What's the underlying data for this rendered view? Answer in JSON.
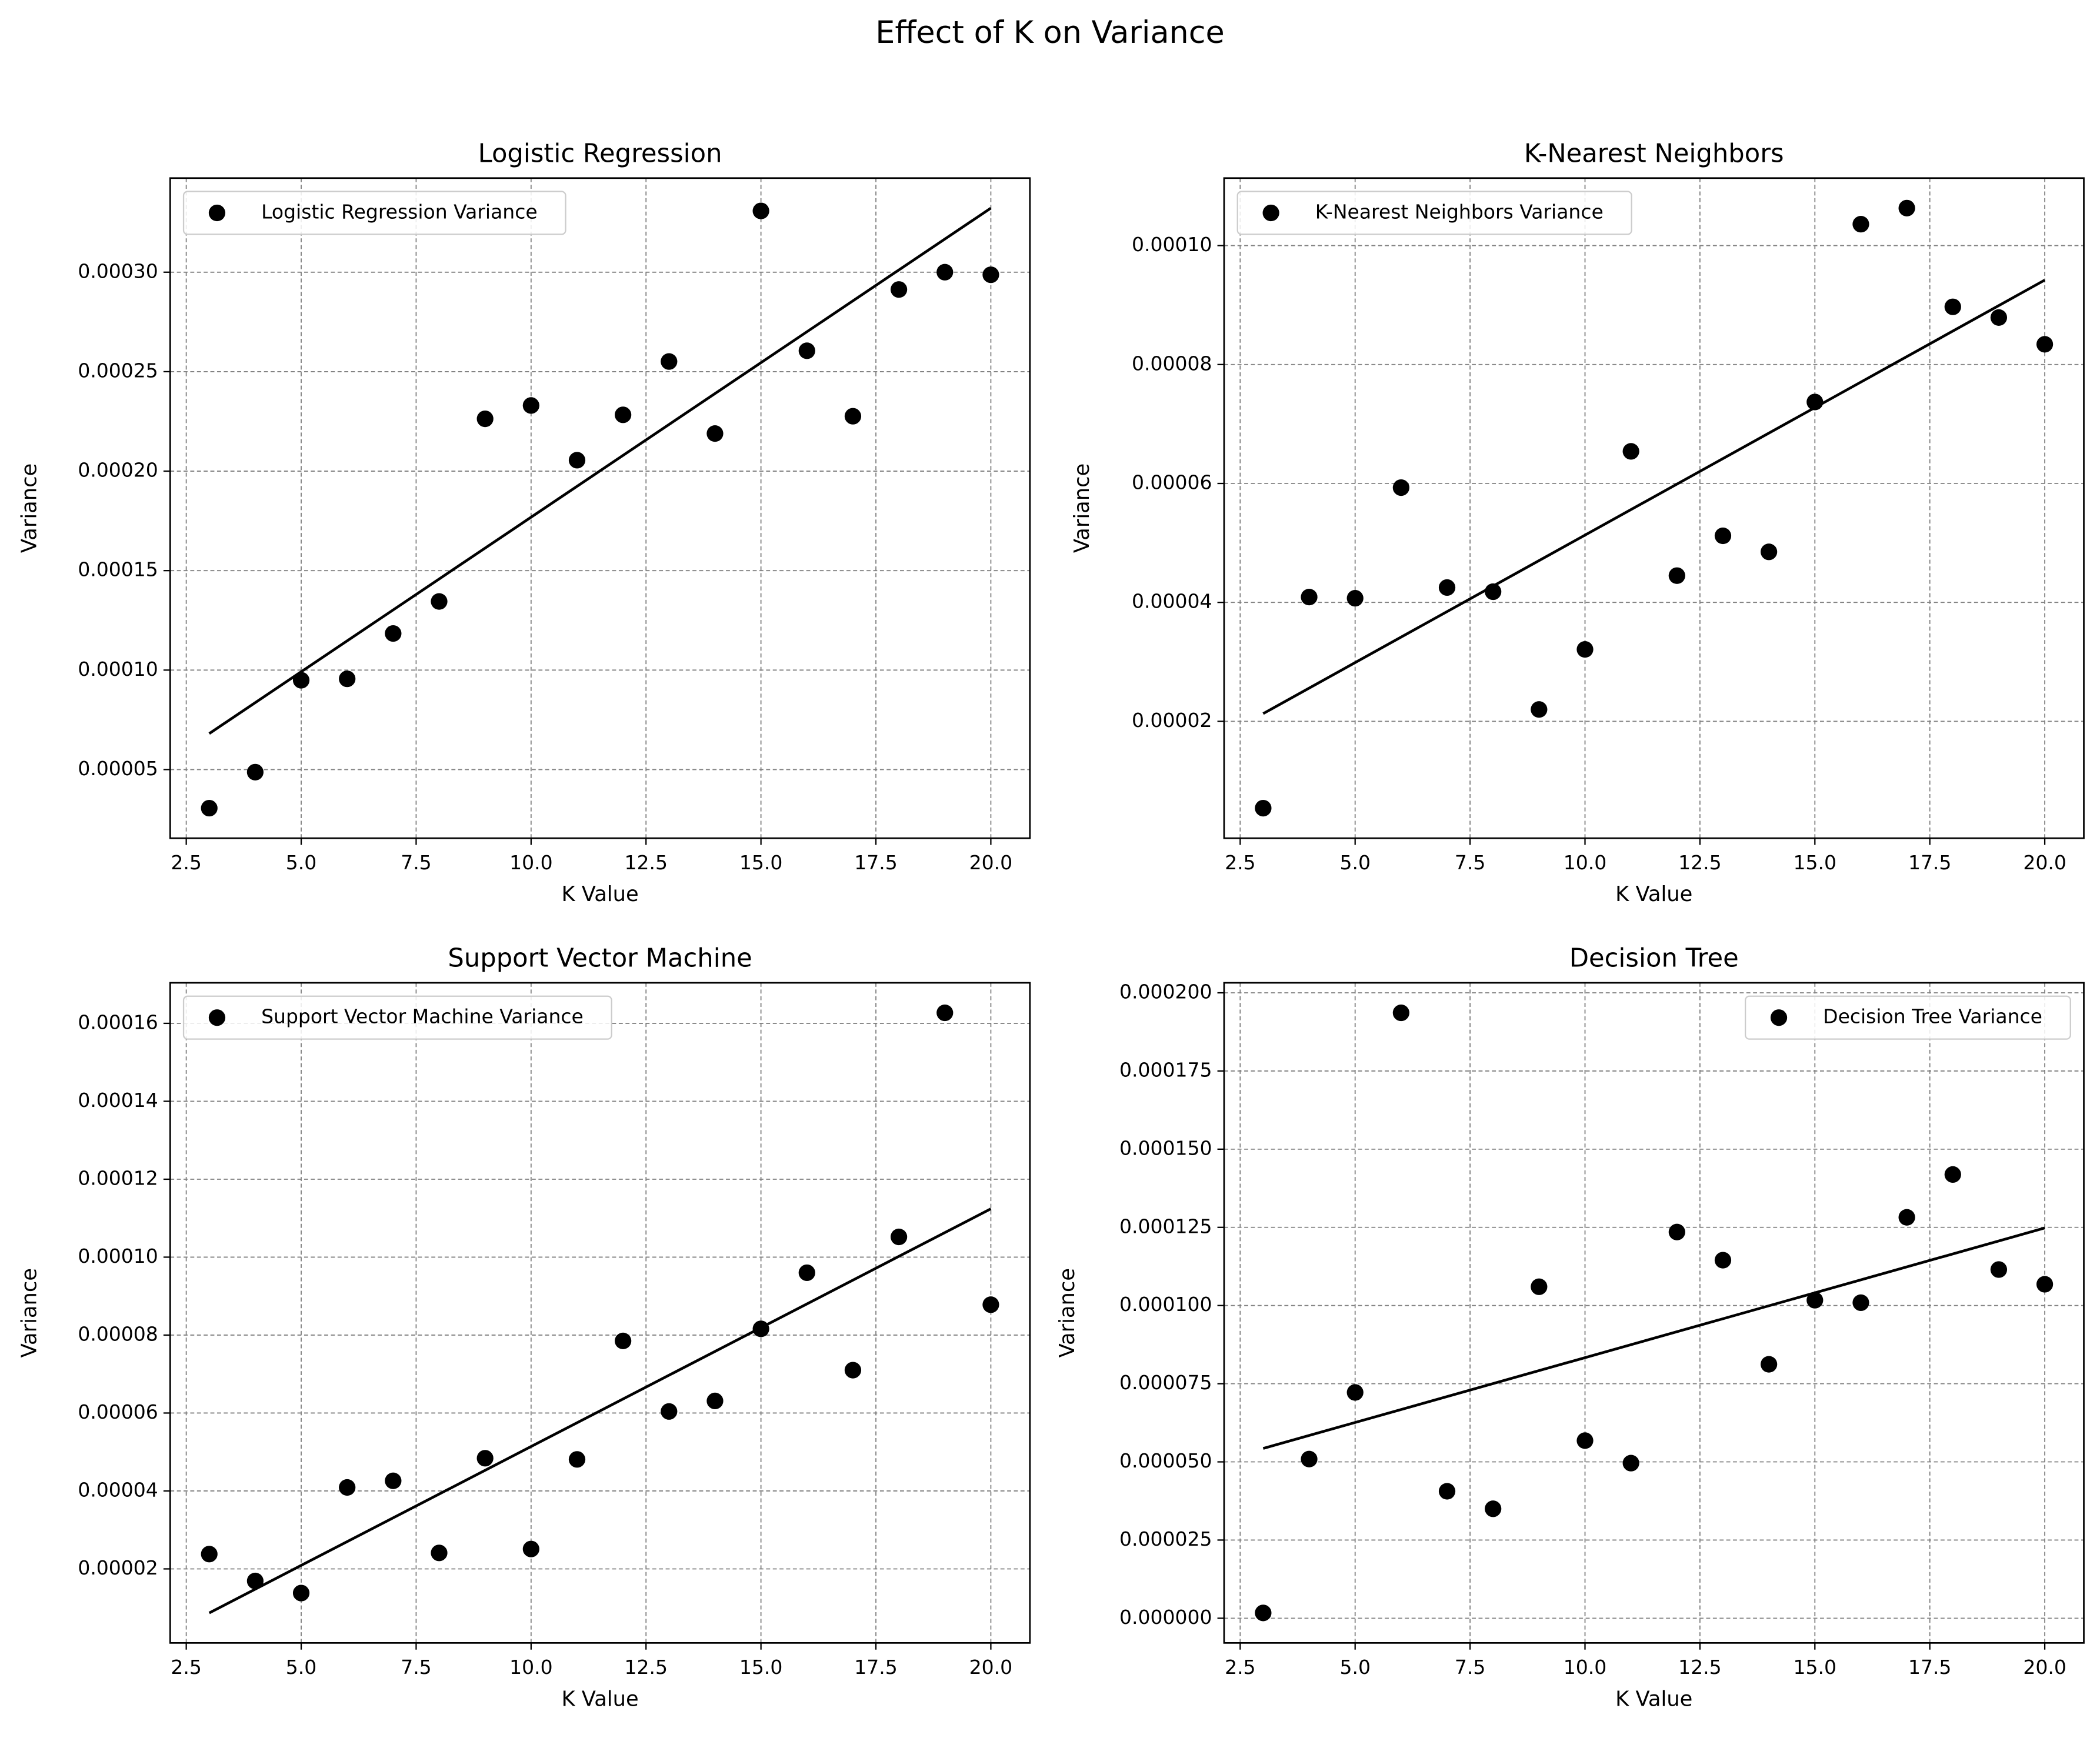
{
  "title": "Effect of K on Variance",
  "chart_data": [
    {
      "type": "scatter",
      "title": "Logistic Regression",
      "x_label": "K Value",
      "y_label": "Variance",
      "x": [
        3,
        4,
        5,
        6,
        7,
        8,
        9,
        10,
        11,
        12,
        13,
        14,
        15,
        16,
        17,
        18,
        19,
        20
      ],
      "series": [
        {
          "name": "Logistic Regression Variance",
          "color": "#000000",
          "values": [
            3.06e-05,
            4.87e-05,
            9.49e-05,
            9.56e-05,
            0.0001184,
            0.0001345,
            0.0002263,
            0.000233,
            0.0002055,
            0.0002283,
            0.0002551,
            0.0002189,
            0.0003308,
            0.0002605,
            0.0002276,
            0.0002913,
            0.0003,
            0.0002987
          ]
        }
      ],
      "fit": {
        "color": "#000000",
        "x": [
          3,
          20
        ],
        "values": [
          6.81e-05,
          0.0003322
        ]
      },
      "xlim": [
        2.15,
        20.85
      ],
      "ylim": [
        1.55e-05,
        0.0003473
      ],
      "xticks": [
        2.5,
        {
          "value": 5,
          "label": "5.0"
        },
        7.5,
        {
          "value": 10,
          "label": "10.0"
        },
        12.5,
        {
          "value": 15,
          "label": "15.0"
        },
        17.5,
        {
          "value": 20,
          "label": "20.0"
        }
      ],
      "yticks": [
        {
          "value": 5e-05,
          "label": "0.00005"
        },
        {
          "value": 0.0001,
          "label": "0.00010"
        },
        {
          "value": 0.00015,
          "label": "0.00015"
        },
        {
          "value": 0.0002,
          "label": "0.00020"
        },
        {
          "value": 0.00025,
          "label": "0.00025"
        },
        {
          "value": 0.0003,
          "label": "0.00030"
        }
      ],
      "grid": true,
      "legend": "upper left"
    },
    {
      "type": "scatter",
      "title": "K-Nearest Neighbors",
      "x_label": "K Value",
      "y_label": "Variance",
      "x": [
        3,
        4,
        5,
        6,
        7,
        8,
        9,
        10,
        11,
        12,
        13,
        14,
        15,
        16,
        17,
        18,
        19,
        20
      ],
      "series": [
        {
          "name": "K-Nearest Neighbors Variance",
          "color": "#000000",
          "values": [
            5.4e-06,
            4.09e-05,
            4.07e-05,
            5.93e-05,
            4.25e-05,
            4.18e-05,
            2.2e-05,
            3.21e-05,
            6.54e-05,
            4.45e-05,
            5.12e-05,
            4.85e-05,
            7.37e-05,
            0.0001036,
            0.0001063,
            8.97e-05,
            8.79e-05,
            8.34e-05
          ]
        }
      ],
      "fit": {
        "color": "#000000",
        "x": [
          3,
          20
        ],
        "values": [
          2.13e-05,
          9.42e-05
        ]
      },
      "xlim": [
        2.15,
        20.85
      ],
      "ylim": [
        3.5e-07,
        0.00011135
      ],
      "xticks": [
        2.5,
        {
          "value": 5,
          "label": "5.0"
        },
        7.5,
        {
          "value": 10,
          "label": "10.0"
        },
        12.5,
        {
          "value": 15,
          "label": "15.0"
        },
        17.5,
        {
          "value": 20,
          "label": "20.0"
        }
      ],
      "yticks": [
        {
          "value": 2e-05,
          "label": "0.00002"
        },
        {
          "value": 4e-05,
          "label": "0.00004"
        },
        {
          "value": 6e-05,
          "label": "0.00006"
        },
        {
          "value": 8e-05,
          "label": "0.00008"
        },
        {
          "value": 0.0001,
          "label": "0.00010"
        }
      ],
      "grid": true,
      "legend": "upper left"
    },
    {
      "type": "scatter",
      "title": "Support Vector Machine",
      "x_label": "K Value",
      "y_label": "Variance",
      "x": [
        3,
        4,
        5,
        6,
        7,
        8,
        9,
        10,
        11,
        12,
        13,
        14,
        15,
        16,
        17,
        18,
        19,
        20
      ],
      "series": [
        {
          "name": "Support Vector Machine Variance",
          "color": "#000000",
          "values": [
            2.38e-05,
            1.69e-05,
            1.38e-05,
            4.09e-05,
            4.26e-05,
            2.41e-05,
            4.84e-05,
            2.51e-05,
            4.81e-05,
            7.85e-05,
            6.04e-05,
            6.31e-05,
            8.16e-05,
            9.6e-05,
            7.1e-05,
            0.0001052,
            0.0001627,
            8.78e-05
          ]
        }
      ],
      "fit": {
        "color": "#000000",
        "x": [
          3,
          20
        ],
        "values": [
          8.7e-06,
          0.0001124
        ]
      },
      "xlim": [
        2.15,
        20.85
      ],
      "ylim": [
        1e-06,
        0.0001704
      ],
      "xticks": [
        2.5,
        {
          "value": 5,
          "label": "5.0"
        },
        7.5,
        {
          "value": 10,
          "label": "10.0"
        },
        12.5,
        {
          "value": 15,
          "label": "15.0"
        },
        17.5,
        {
          "value": 20,
          "label": "20.0"
        }
      ],
      "yticks": [
        {
          "value": 2e-05,
          "label": "0.00002"
        },
        {
          "value": 4e-05,
          "label": "0.00004"
        },
        {
          "value": 6e-05,
          "label": "0.00006"
        },
        {
          "value": 8e-05,
          "label": "0.00008"
        },
        {
          "value": 0.0001,
          "label": "0.00010"
        },
        {
          "value": 0.00012,
          "label": "0.00012"
        },
        {
          "value": 0.00014,
          "label": "0.00014"
        },
        {
          "value": 0.00016,
          "label": "0.00016"
        }
      ],
      "grid": true,
      "legend": "upper left"
    },
    {
      "type": "scatter",
      "title": "Decision Tree",
      "x_label": "K Value",
      "y_label": "Variance",
      "x": [
        3,
        4,
        5,
        6,
        7,
        8,
        9,
        10,
        11,
        12,
        13,
        14,
        15,
        16,
        17,
        18,
        19,
        20
      ],
      "series": [
        {
          "name": "Decision Tree Variance",
          "color": "#000000",
          "values": [
            1.7e-06,
            5.09e-05,
            7.22e-05,
            0.0001936,
            4.06e-05,
            3.5e-05,
            0.000106,
            5.68e-05,
            4.96e-05,
            0.0001235,
            0.0001145,
            8.12e-05,
            0.0001017,
            0.0001009,
            0.0001282,
            0.0001419,
            0.0001115,
            0.0001068
          ]
        }
      ],
      "fit": {
        "color": "#000000",
        "x": [
          3,
          20
        ],
        "values": [
          5.43e-05,
          0.0001248
        ]
      },
      "xlim": [
        2.15,
        20.85
      ],
      "ylim": [
        -7.9e-06,
        0.0002032
      ],
      "xticks": [
        2.5,
        {
          "value": 5,
          "label": "5.0"
        },
        7.5,
        {
          "value": 10,
          "label": "10.0"
        },
        12.5,
        {
          "value": 15,
          "label": "15.0"
        },
        17.5,
        {
          "value": 20,
          "label": "20.0"
        }
      ],
      "yticks": [
        {
          "value": 0,
          "label": "0.000000"
        },
        {
          "value": 2.5e-05,
          "label": "0.000025"
        },
        {
          "value": 5e-05,
          "label": "0.000050"
        },
        {
          "value": 7.5e-05,
          "label": "0.000075"
        },
        {
          "value": 0.0001,
          "label": "0.000100"
        },
        {
          "value": 0.000125,
          "label": "0.000125"
        },
        {
          "value": 0.00015,
          "label": "0.000150"
        },
        {
          "value": 0.000175,
          "label": "0.000175"
        },
        {
          "value": 0.0002,
          "label": "0.000200"
        }
      ],
      "grid": true,
      "legend": "upper right"
    }
  ]
}
